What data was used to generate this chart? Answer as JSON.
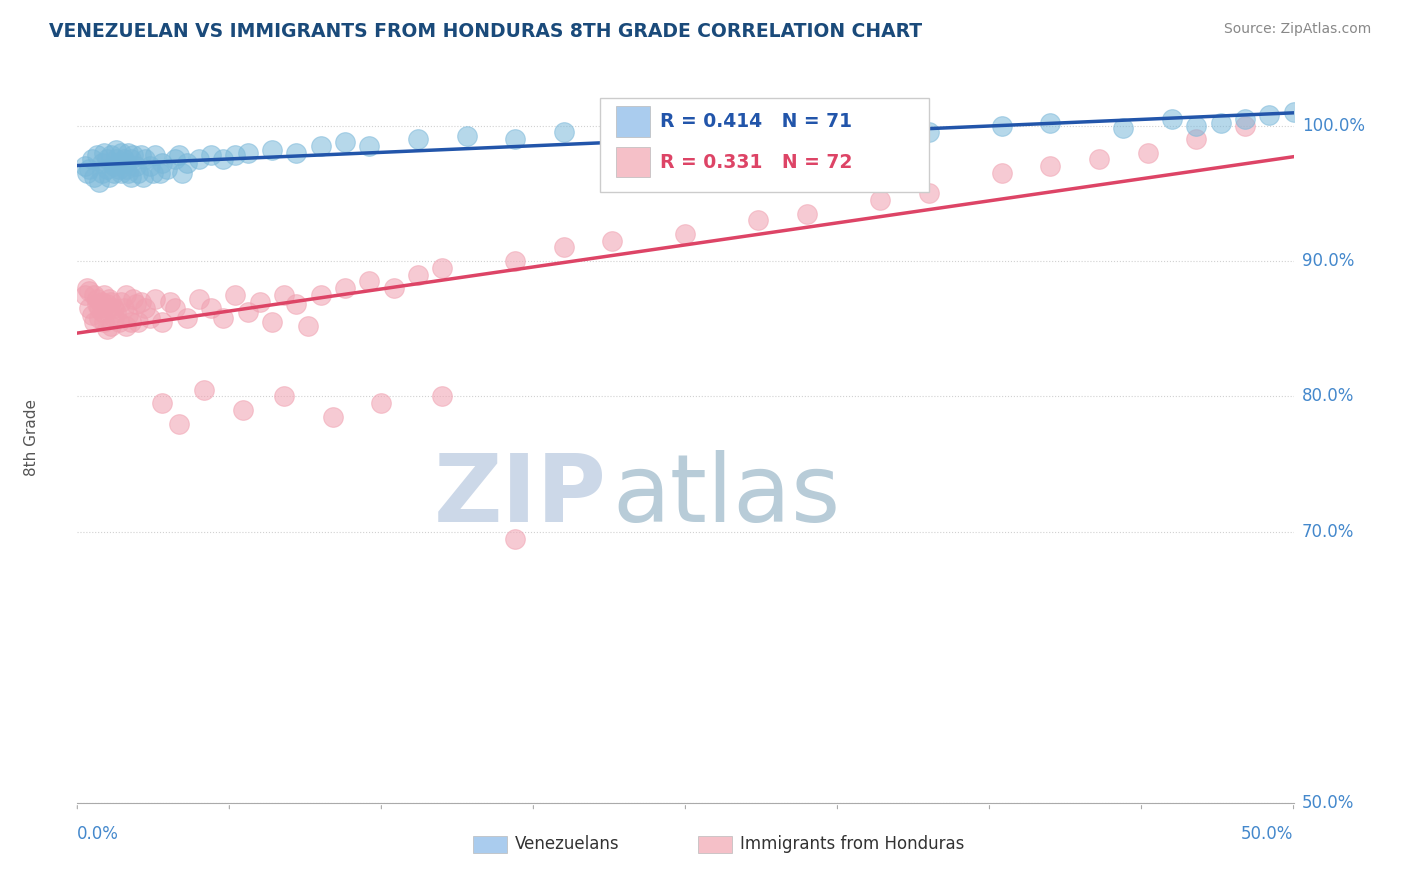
{
  "title": "VENEZUELAN VS IMMIGRANTS FROM HONDURAS 8TH GRADE CORRELATION CHART",
  "source": "Source: ZipAtlas.com",
  "ylabel": "8th Grade",
  "y_ticks": [
    50.0,
    70.0,
    80.0,
    90.0,
    100.0
  ],
  "y_tick_labels": [
    "50.0%",
    "70.0%",
    "80.0%",
    "90.0%",
    "100.0%"
  ],
  "x_range": [
    0.0,
    50.0
  ],
  "y_range": [
    50.0,
    104.0
  ],
  "legend_venezuelans": "Venezuelans",
  "legend_honduras": "Immigrants from Honduras",
  "R_venezuelan": 0.414,
  "N_venezuelan": 71,
  "R_honduras": 0.331,
  "N_honduras": 72,
  "blue_color": "#7ab8d9",
  "pink_color": "#f0a0b0",
  "blue_line_color": "#2255aa",
  "pink_line_color": "#dd4466",
  "blue_legend_color": "#aaccee",
  "pink_legend_color": "#f5c0c8",
  "watermark_zip": "ZIP",
  "watermark_atlas": "atlas",
  "watermark_color": "#ccd8e8",
  "watermark_atlas_color": "#b8ccd8",
  "title_color": "#1a4a7a",
  "tick_color": "#4488cc",
  "grid_color": "#cccccc",
  "venezuelan_scatter_x": [
    0.3,
    0.4,
    0.5,
    0.6,
    0.7,
    0.8,
    0.9,
    1.0,
    1.0,
    1.1,
    1.2,
    1.2,
    1.3,
    1.4,
    1.5,
    1.5,
    1.6,
    1.6,
    1.7,
    1.7,
    1.8,
    1.8,
    1.9,
    2.0,
    2.0,
    2.1,
    2.1,
    2.2,
    2.2,
    2.3,
    2.4,
    2.5,
    2.6,
    2.7,
    2.8,
    3.0,
    3.1,
    3.2,
    3.4,
    3.5,
    3.7,
    4.0,
    4.2,
    4.3,
    4.5,
    5.0,
    5.5,
    6.0,
    6.5,
    7.0,
    8.0,
    9.0,
    10.0,
    11.0,
    12.0,
    14.0,
    16.0,
    18.0,
    20.0,
    25.0,
    30.0,
    35.0,
    38.0,
    40.0,
    43.0,
    45.0,
    46.0,
    47.0,
    48.0,
    49.0,
    50.0
  ],
  "venezuelan_scatter_y": [
    97.0,
    96.5,
    96.8,
    97.5,
    96.2,
    97.8,
    95.8,
    97.2,
    96.5,
    98.0,
    96.8,
    97.5,
    96.2,
    97.8,
    97.0,
    96.5,
    98.2,
    97.5,
    96.8,
    97.2,
    96.5,
    98.0,
    97.5,
    96.8,
    97.2,
    96.5,
    98.0,
    97.5,
    96.2,
    97.8,
    97.0,
    96.5,
    97.8,
    96.2,
    97.5,
    97.0,
    96.5,
    97.8,
    96.5,
    97.2,
    96.8,
    97.5,
    97.8,
    96.5,
    97.2,
    97.5,
    97.8,
    97.5,
    97.8,
    98.0,
    98.2,
    98.0,
    98.5,
    98.8,
    98.5,
    99.0,
    99.2,
    99.0,
    99.5,
    99.5,
    99.8,
    99.5,
    100.0,
    100.2,
    99.8,
    100.5,
    100.0,
    100.2,
    100.5,
    100.8,
    101.0
  ],
  "honduras_scatter_x": [
    0.3,
    0.4,
    0.5,
    0.5,
    0.6,
    0.7,
    0.7,
    0.8,
    0.8,
    0.9,
    0.9,
    1.0,
    1.0,
    1.1,
    1.1,
    1.2,
    1.2,
    1.3,
    1.3,
    1.4,
    1.4,
    1.5,
    1.5,
    1.6,
    1.7,
    1.8,
    1.9,
    2.0,
    2.0,
    2.1,
    2.2,
    2.3,
    2.4,
    2.5,
    2.6,
    2.8,
    3.0,
    3.2,
    3.5,
    3.8,
    4.0,
    4.5,
    5.0,
    5.5,
    6.0,
    6.5,
    7.0,
    7.5,
    8.0,
    8.5,
    9.0,
    9.5,
    10.0,
    11.0,
    12.0,
    13.0,
    14.0,
    15.0,
    18.0,
    20.0,
    22.0,
    25.0,
    28.0,
    30.0,
    33.0,
    35.0,
    38.0,
    40.0,
    42.0,
    44.0,
    46.0,
    48.0
  ],
  "honduras_scatter_y": [
    87.5,
    88.0,
    86.5,
    87.8,
    86.0,
    87.5,
    85.5,
    86.8,
    87.2,
    85.8,
    86.5,
    87.0,
    86.2,
    85.5,
    87.5,
    86.8,
    85.0,
    87.2,
    86.5,
    85.2,
    87.0,
    86.5,
    85.8,
    86.2,
    85.5,
    87.0,
    86.5,
    85.2,
    87.5,
    86.0,
    85.5,
    87.2,
    86.8,
    85.5,
    87.0,
    86.5,
    85.8,
    87.2,
    85.5,
    87.0,
    86.5,
    85.8,
    87.2,
    86.5,
    85.8,
    87.5,
    86.2,
    87.0,
    85.5,
    87.5,
    86.8,
    85.2,
    87.5,
    88.0,
    88.5,
    88.0,
    89.0,
    89.5,
    90.0,
    91.0,
    91.5,
    92.0,
    93.0,
    93.5,
    94.5,
    95.0,
    96.5,
    97.0,
    97.5,
    98.0,
    99.0,
    100.0
  ],
  "honduras_outliers_x": [
    3.5,
    4.2,
    5.2,
    6.8,
    8.5,
    10.5,
    12.5,
    15.0,
    18.0
  ],
  "honduras_outliers_y": [
    79.5,
    78.0,
    80.5,
    79.0,
    80.0,
    78.5,
    79.5,
    80.0,
    69.5
  ],
  "background_color": "#ffffff"
}
